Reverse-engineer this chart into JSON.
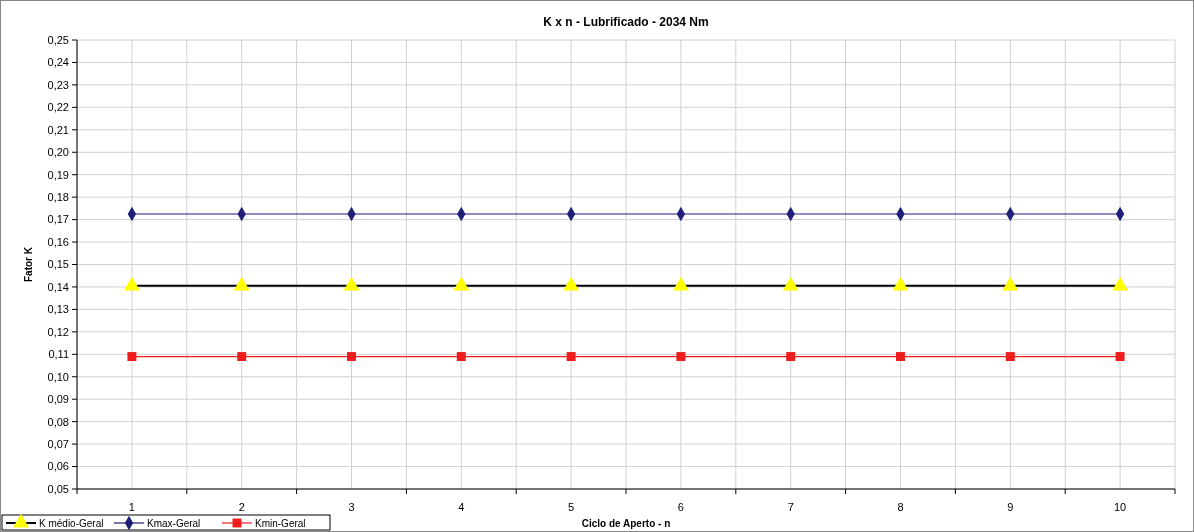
{
  "chart_data": {
    "type": "line",
    "title": "K x n - Lubrificado - 2034 Nm",
    "xlabel": "Ciclo de Aperto - n",
    "ylabel": "Fator K",
    "categories": [
      "1",
      "2",
      "3",
      "4",
      "5",
      "6",
      "7",
      "8",
      "9",
      "10"
    ],
    "series": [
      {
        "name": "K médio-Geral",
        "color": "#000000",
        "colors": [
          "#ffff00",
          "#ffff00",
          "#ffff00",
          "#ffff00",
          "#ffff00",
          "#ffff00",
          "#ffff00",
          "#ffff00",
          "#ffff00",
          "#ffff00"
        ],
        "marker": "triangle",
        "values": [
          0.1405,
          0.1405,
          0.1405,
          0.1405,
          0.1405,
          0.1405,
          0.1405,
          0.1405,
          0.1405,
          0.1405
        ]
      },
      {
        "name": "Kmax-Geral",
        "color": "#1f1f7a",
        "marker": "diamond",
        "values": [
          0.1725,
          0.1725,
          0.1725,
          0.1725,
          0.1725,
          0.1725,
          0.1725,
          0.1725,
          0.1725,
          0.1725
        ]
      },
      {
        "name": "Kmin-Geral",
        "color": "#ee1c1c",
        "marker": "square",
        "values": [
          0.109,
          0.109,
          0.109,
          0.109,
          0.109,
          0.109,
          0.109,
          0.109,
          0.109,
          0.109
        ]
      }
    ],
    "ylim": [
      0.05,
      0.25
    ],
    "yticks": [
      {
        "value": 0.05,
        "label": "0,05"
      },
      {
        "value": 0.06,
        "label": "0,06"
      },
      {
        "value": 0.07,
        "label": "0,07"
      },
      {
        "value": 0.08,
        "label": "0,08"
      },
      {
        "value": 0.09,
        "label": "0,09"
      },
      {
        "value": 0.1,
        "label": "0,10"
      },
      {
        "value": 0.11,
        "label": "0,11"
      },
      {
        "value": 0.12,
        "label": "0,12"
      },
      {
        "value": 0.13,
        "label": "0,13"
      },
      {
        "value": 0.14,
        "label": "0,14"
      },
      {
        "value": 0.15,
        "label": "0,15"
      },
      {
        "value": 0.16,
        "label": "0,16"
      },
      {
        "value": 0.17,
        "label": "0,17"
      },
      {
        "value": 0.18,
        "label": "0,18"
      },
      {
        "value": 0.19,
        "label": "0,19"
      },
      {
        "value": 0.2,
        "label": "0,20"
      },
      {
        "value": 0.21,
        "label": "0,21"
      },
      {
        "value": 0.22,
        "label": "0,22"
      },
      {
        "value": 0.23,
        "label": "0,23"
      },
      {
        "value": 0.24,
        "label": "0,24"
      },
      {
        "value": 0.25,
        "label": "0,25"
      }
    ],
    "grid": true,
    "legend": "bottom left",
    "line_style": "solid"
  }
}
